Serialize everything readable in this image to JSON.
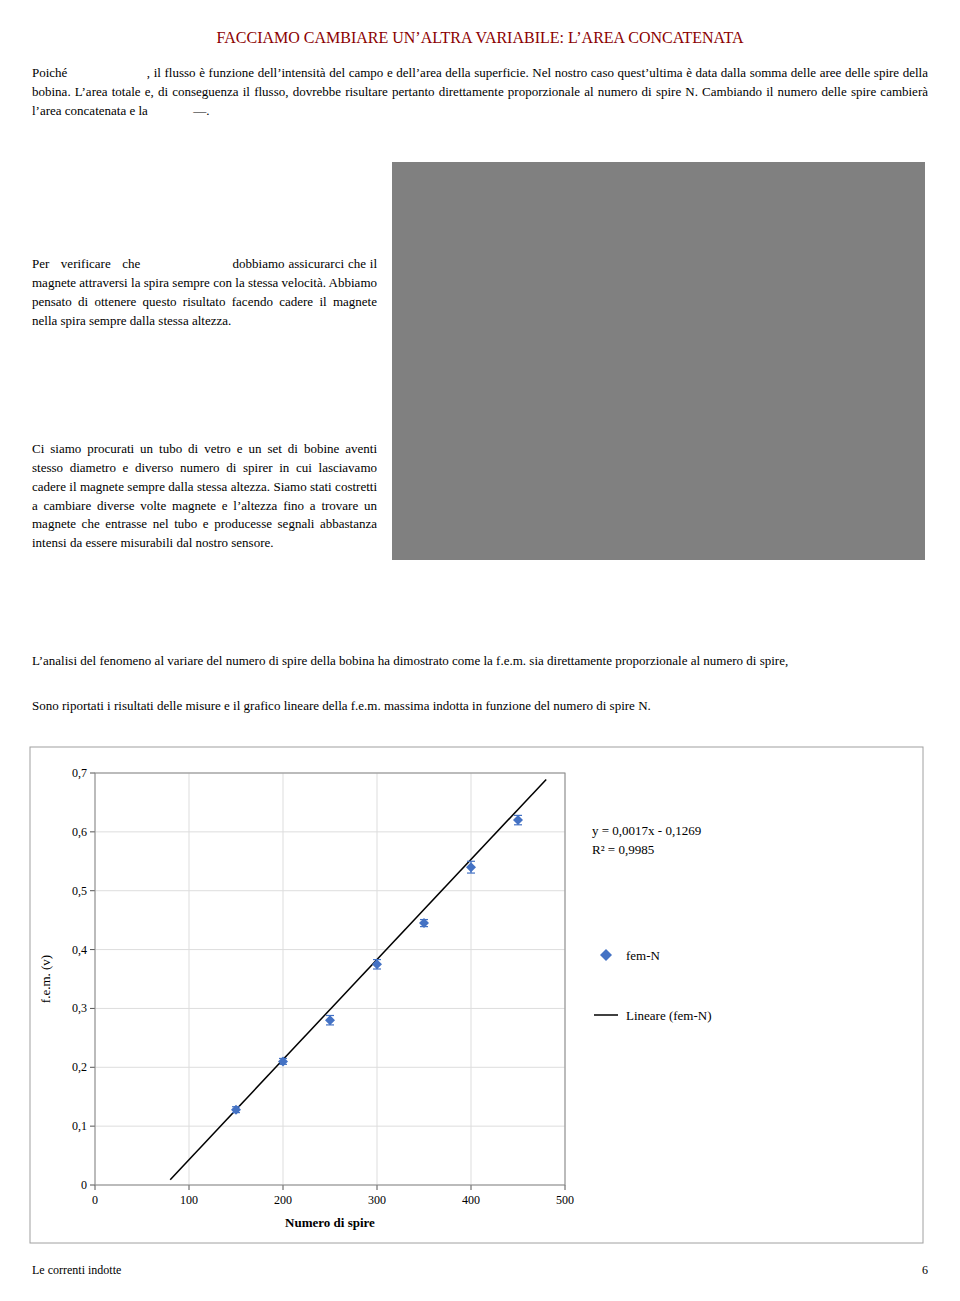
{
  "page": {
    "title": "FACCIAMO CAMBIARE UN’ALTRA VARIABILE: L’AREA CONCATENATA",
    "title_color": "#8B0000",
    "paragraphs": [
      "Poiché                      , il flusso è funzione dell’intensità del campo e dell’area della superficie. Nel nostro caso quest’ultima è data dalla somma delle aree delle spire della bobina. L’area totale e, di conseguenza il flusso, dovrebbe risultare pertanto direttamente proporzionale al numero di spire N. Cambiando il numero delle spire cambierà l’area concatenata e la              —.",
      "Per   verificare   che                        dobbiamo assicurarci che il magnete attraversi la spira sempre con la stessa velocità. Abbiamo pensato di ottenere questo risultato facendo cadere il magnete nella spira sempre dalla stessa altezza.",
      "Ci siamo procurati un tubo di vetro e un set di bobine aventi stesso diametro e diverso numero di spirer in cui lasciavamo cadere il magnete sempre dalla stessa altezza. Siamo stati costretti a cambiare diverse volte magnete e l’altezza fino a trovare un magnete che entrasse nel tubo e producesse segnali abbastanza intensi da essere misurabili dal nostro sensore.",
      "L’analisi del fenomeno al variare del numero di spire della bobina ha dimostrato come la f.e.m. sia direttamente proporzionale al numero di spire,",
      "Sono riportati i risultati delle misure e il grafico lineare della f.e.m. massima indotta in funzione del numero di spire N."
    ],
    "footer_left": "Le correnti indotte",
    "footer_right": "6"
  },
  "chart_data": {
    "type": "scatter",
    "xlabel": "Numero di spire",
    "ylabel": "f.e.m. (v)",
    "xlim": [
      0,
      500
    ],
    "ylim": [
      0,
      0.7
    ],
    "xticks": [
      0,
      100,
      200,
      300,
      400,
      500
    ],
    "yticks": [
      0,
      {
        "value": 0.1,
        "label": "0,1"
      },
      {
        "value": 0.2,
        "label": "0,2"
      },
      {
        "value": 0.3,
        "label": "0,3"
      },
      {
        "value": 0.4,
        "label": "0,4"
      },
      {
        "value": 0.5,
        "label": "0,5"
      },
      {
        "value": 0.6,
        "label": "0,6"
      },
      {
        "value": 0.7,
        "label": "0,7"
      }
    ],
    "grid": true,
    "legend": "right",
    "annotations": [
      "y = 0,0017x - 0,1269",
      "R² = 0,9985"
    ],
    "series": [
      {
        "name": "fem-N",
        "type": "scatter",
        "color": "#4472C4",
        "marker": "diamond",
        "x": [
          150,
          200,
          250,
          300,
          350,
          400,
          450
        ],
        "values": [
          0.128,
          0.21,
          0.28,
          0.375,
          0.445,
          0.54,
          0.62
        ],
        "errors": [
          0.005,
          0.005,
          0.008,
          0.008,
          0.006,
          0.01,
          0.008
        ]
      },
      {
        "name": "Lineare (fem-N)",
        "type": "line",
        "color": "#000000",
        "line_style": "solid",
        "x": [
          80,
          480
        ],
        "values": [
          0.0091,
          0.6891
        ]
      }
    ]
  }
}
